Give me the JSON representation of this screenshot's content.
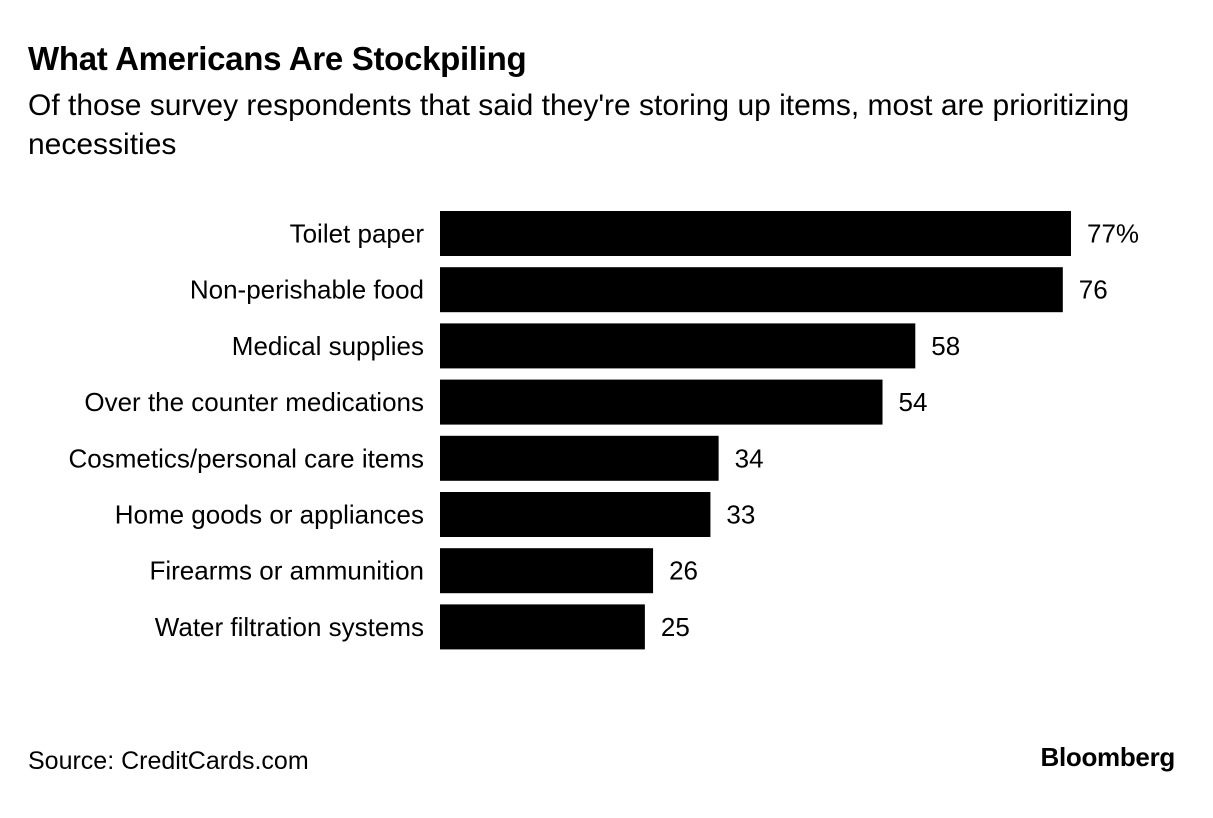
{
  "title": "What Americans Are Stockpiling",
  "subtitle": "Of those survey respondents that said they're storing up items, most are prioritizing necessities",
  "source": "Source: CreditCards.com",
  "brand": "Bloomberg",
  "colors": {
    "bar": "#000000",
    "text": "#000000",
    "background": "#ffffff"
  },
  "chart_data": {
    "type": "bar",
    "orientation": "horizontal",
    "categories": [
      "Toilet paper",
      "Non-perishable food",
      "Medical supplies",
      "Over the counter medications",
      "Cosmetics/personal care items",
      "Home goods or appliances",
      "Firearms or ammunition",
      "Water filtration systems"
    ],
    "values": [
      77,
      76,
      58,
      54,
      34,
      33,
      26,
      25
    ],
    "value_labels": [
      "77%",
      "76",
      "58",
      "54",
      "34",
      "33",
      "26",
      "25"
    ],
    "unit": "%",
    "title": "What Americans Are Stockpiling",
    "xlabel": "",
    "ylabel": "",
    "xlim": [
      0,
      77
    ],
    "grid": false,
    "legend": "none"
  }
}
